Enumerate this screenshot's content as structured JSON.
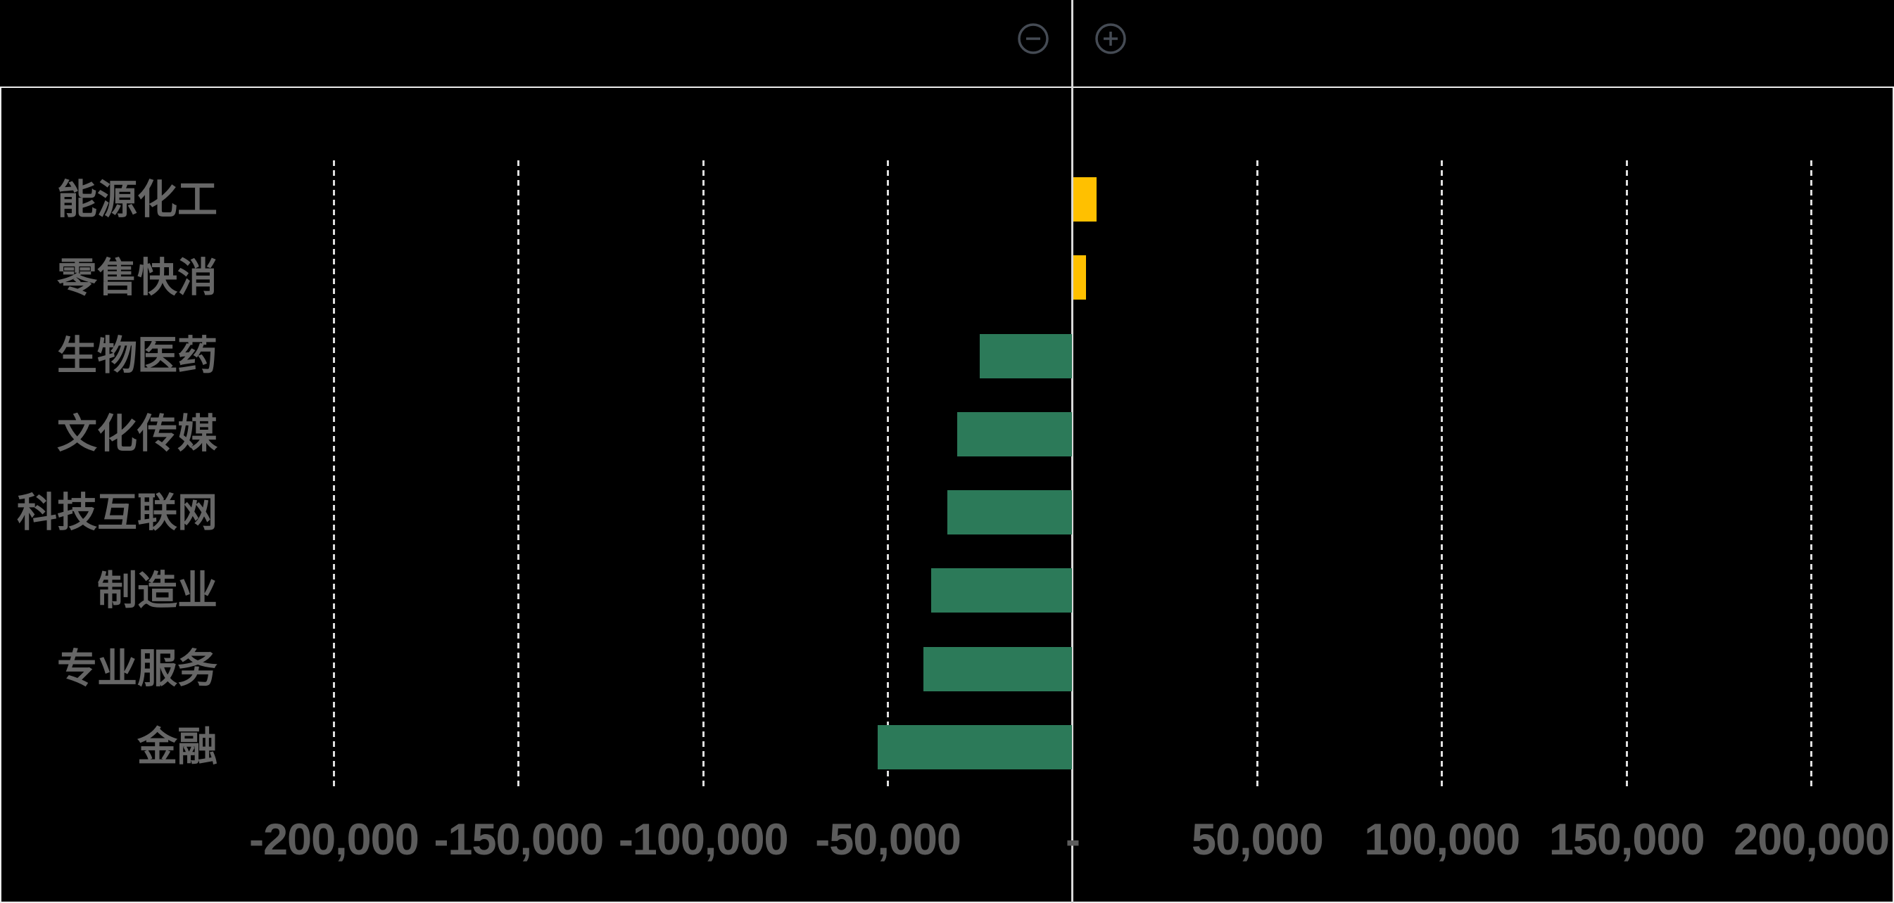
{
  "chart_data": {
    "type": "bar",
    "orientation": "horizontal",
    "title": "",
    "xlabel": "",
    "ylabel": "",
    "legend": "none",
    "grid": "vertical-dashed",
    "xlim": [
      -200000,
      200000
    ],
    "categories": [
      "能源化工",
      "零售快消",
      "生物医药",
      "文化传媒",
      "科技互联网",
      "制造业",
      "专业服务",
      "金融"
    ],
    "values": [
      6300,
      3400,
      -25000,
      -31100,
      -33800,
      -38100,
      -40200,
      -52600
    ],
    "bar_colors": [
      "#FFC000",
      "#FFC000",
      "#2C7A59",
      "#2C7A59",
      "#2C7A59",
      "#2C7A59",
      "#2C7A59",
      "#2C7A59"
    ],
    "x_ticks": [
      {
        "value": -200000,
        "label": "-200,000"
      },
      {
        "value": -150000,
        "label": "-150,000"
      },
      {
        "value": -100000,
        "label": "-100,000"
      },
      {
        "value": -50000,
        "label": "-50,000"
      },
      {
        "value": 0,
        "label": "-"
      },
      {
        "value": 50000,
        "label": "50,000"
      },
      {
        "value": 100000,
        "label": "100,000"
      },
      {
        "value": 150000,
        "label": "150,000"
      },
      {
        "value": 200000,
        "label": "200,000"
      }
    ]
  },
  "toolbar": {
    "zoom_out_icon": "circled-minus",
    "zoom_in_icon": "circled-plus"
  },
  "colors": {
    "background": "#000000",
    "frame_border": "#ECECEC",
    "zero_axis_line": "#D9D9D9",
    "gridline": "#DFDFDF",
    "category_label": "#666666",
    "tick_label": "#5C5C5C",
    "icon": "#454B54",
    "positive_bar": "#FFC000",
    "negative_bar": "#2C7A59"
  }
}
